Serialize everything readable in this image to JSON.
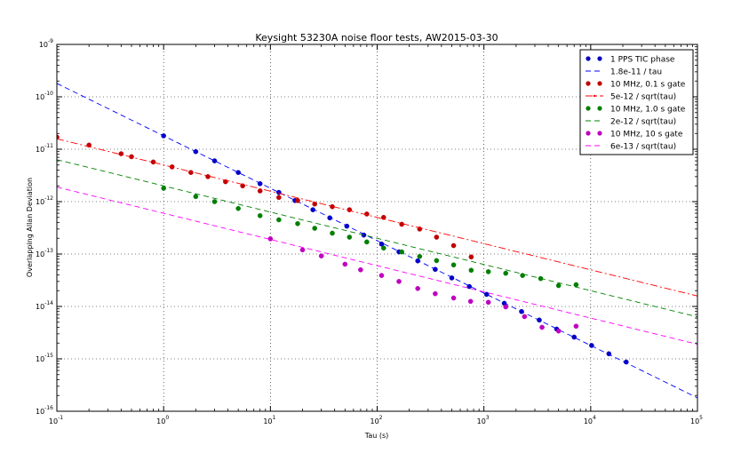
{
  "chart_data": {
    "type": "scatter",
    "title": "Keysight 53230A noise floor tests, AW2015-03-30",
    "xlabel": "Tau (s)",
    "ylabel": "Overlapping Allan Deviation",
    "xscale": "log",
    "yscale": "log",
    "xlim": [
      0.1,
      100000
    ],
    "ylim": [
      1e-16,
      1e-09
    ],
    "grid": true,
    "legend_position": "top-right",
    "x_ticks": [
      {
        "value": 0.1,
        "base": "10",
        "exp": "-1"
      },
      {
        "value": 1,
        "base": "10",
        "exp": "0"
      },
      {
        "value": 10,
        "base": "10",
        "exp": "1"
      },
      {
        "value": 100,
        "base": "10",
        "exp": "2"
      },
      {
        "value": 1000,
        "base": "10",
        "exp": "3"
      },
      {
        "value": 10000,
        "base": "10",
        "exp": "4"
      },
      {
        "value": 100000,
        "base": "10",
        "exp": "5"
      }
    ],
    "y_ticks": [
      {
        "value": 1e-16,
        "base": "10",
        "exp": "-16"
      },
      {
        "value": 1e-15,
        "base": "10",
        "exp": "-15"
      },
      {
        "value": 1e-14,
        "base": "10",
        "exp": "-14"
      },
      {
        "value": 1e-13,
        "base": "10",
        "exp": "-13"
      },
      {
        "value": 1e-12,
        "base": "10",
        "exp": "-12"
      },
      {
        "value": 1e-11,
        "base": "10",
        "exp": "-11"
      },
      {
        "value": 1e-10,
        "base": "10",
        "exp": "-10"
      },
      {
        "value": 1e-09,
        "base": "10",
        "exp": "-9"
      }
    ],
    "series": [
      {
        "name": "1 PPS TIC phase",
        "kind": "points",
        "color": "#0000bf",
        "x": [
          1,
          2,
          3,
          5,
          8,
          12,
          17,
          25,
          36,
          52,
          75,
          110,
          160,
          240,
          350,
          500,
          730,
          1060,
          1550,
          2250,
          3300,
          4800,
          7000,
          10200,
          14800,
          21500
        ],
        "y": [
          1.8e-11,
          9e-12,
          6e-12,
          3.6e-12,
          2.2e-12,
          1.5e-12,
          1.05e-12,
          7e-13,
          4.9e-13,
          3.4e-13,
          2.3e-13,
          1.55e-13,
          1.1e-13,
          7.4e-14,
          5.1e-14,
          3.5e-14,
          2.4e-14,
          1.7e-14,
          1.15e-14,
          8e-15,
          5.5e-15,
          3.7e-15,
          2.6e-15,
          1.8e-15,
          1.25e-15,
          8.7e-16
        ]
      },
      {
        "name": "1.8e-11 / tau",
        "kind": "line",
        "dash": "6,4",
        "color": "#0000ff",
        "x": [
          0.1,
          100000
        ],
        "y": [
          1.8e-10,
          1.8e-16
        ]
      },
      {
        "name": "10 MHz, 0.1 s gate",
        "kind": "points",
        "color": "#bf0000",
        "x": [
          0.1,
          0.2,
          0.4,
          0.5,
          0.8,
          1.2,
          1.8,
          2.6,
          3.8,
          5.5,
          8,
          12,
          18,
          26,
          38,
          55,
          80,
          115,
          170,
          250,
          360,
          520,
          760
        ],
        "y": [
          1.7e-11,
          1.2e-11,
          8.2e-12,
          7.2e-12,
          5.7e-12,
          4.6e-12,
          3.6e-12,
          3e-12,
          2.4e-12,
          2e-12,
          1.6e-12,
          1.2e-12,
          1.05e-12,
          9e-13,
          8e-13,
          7e-13,
          5.8e-13,
          5e-13,
          3.7e-13,
          3e-13,
          2.1e-13,
          1.45e-13,
          8.8e-14
        ]
      },
      {
        "name": "5e-12 / sqrt(tau)",
        "kind": "line",
        "dash": "8,3,2,3",
        "color": "#ff0000",
        "x": [
          0.1,
          100000
        ],
        "y": [
          1.581e-11,
          1.581e-14
        ]
      },
      {
        "name": "10 MHz, 1.0 s gate",
        "kind": "points",
        "color": "#007f00",
        "x": [
          1,
          2,
          3,
          5,
          8,
          12,
          18,
          26,
          38,
          55,
          80,
          115,
          170,
          250,
          360,
          520,
          760,
          1100,
          1600,
          2300,
          3400,
          5000,
          7300
        ],
        "y": [
          1.8e-12,
          1.25e-12,
          1e-12,
          7.4e-13,
          5.4e-13,
          4.5e-13,
          3.8e-13,
          3.1e-13,
          2.5e-13,
          2.1e-13,
          1.7e-13,
          1.3e-13,
          1.1e-13,
          9e-14,
          7.5e-14,
          6.2e-14,
          4.9e-14,
          4.6e-14,
          4.3e-14,
          3.9e-14,
          3.4e-14,
          2.5e-14,
          2.6e-14
        ]
      },
      {
        "name": "2e-12 / sqrt(tau)",
        "kind": "line",
        "dash": "6,4",
        "color": "#008000",
        "x": [
          0.1,
          100000
        ],
        "y": [
          6.32e-12,
          6.32e-15
        ]
      },
      {
        "name": "10 MHz, 10 s gate",
        "kind": "points",
        "color": "#bf00bf",
        "x": [
          10,
          20,
          30,
          50,
          70,
          110,
          160,
          240,
          350,
          520,
          750,
          1100,
          1600,
          2400,
          3500,
          5000,
          7300
        ],
        "y": [
          1.95e-13,
          1.2e-13,
          9.2e-14,
          6.4e-14,
          5e-14,
          3.9e-14,
          3e-14,
          2.2e-14,
          1.75e-14,
          1.45e-14,
          1.25e-14,
          1.2e-14,
          9.8e-15,
          6.4e-15,
          4e-15,
          3.4e-15,
          4.2e-15
        ]
      },
      {
        "name": "6e-13 / sqrt(tau)",
        "kind": "line",
        "dash": "6,4",
        "color": "#ff00ff",
        "x": [
          0.1,
          100000
        ],
        "y": [
          1.897e-12,
          1.897e-15
        ]
      }
    ]
  }
}
